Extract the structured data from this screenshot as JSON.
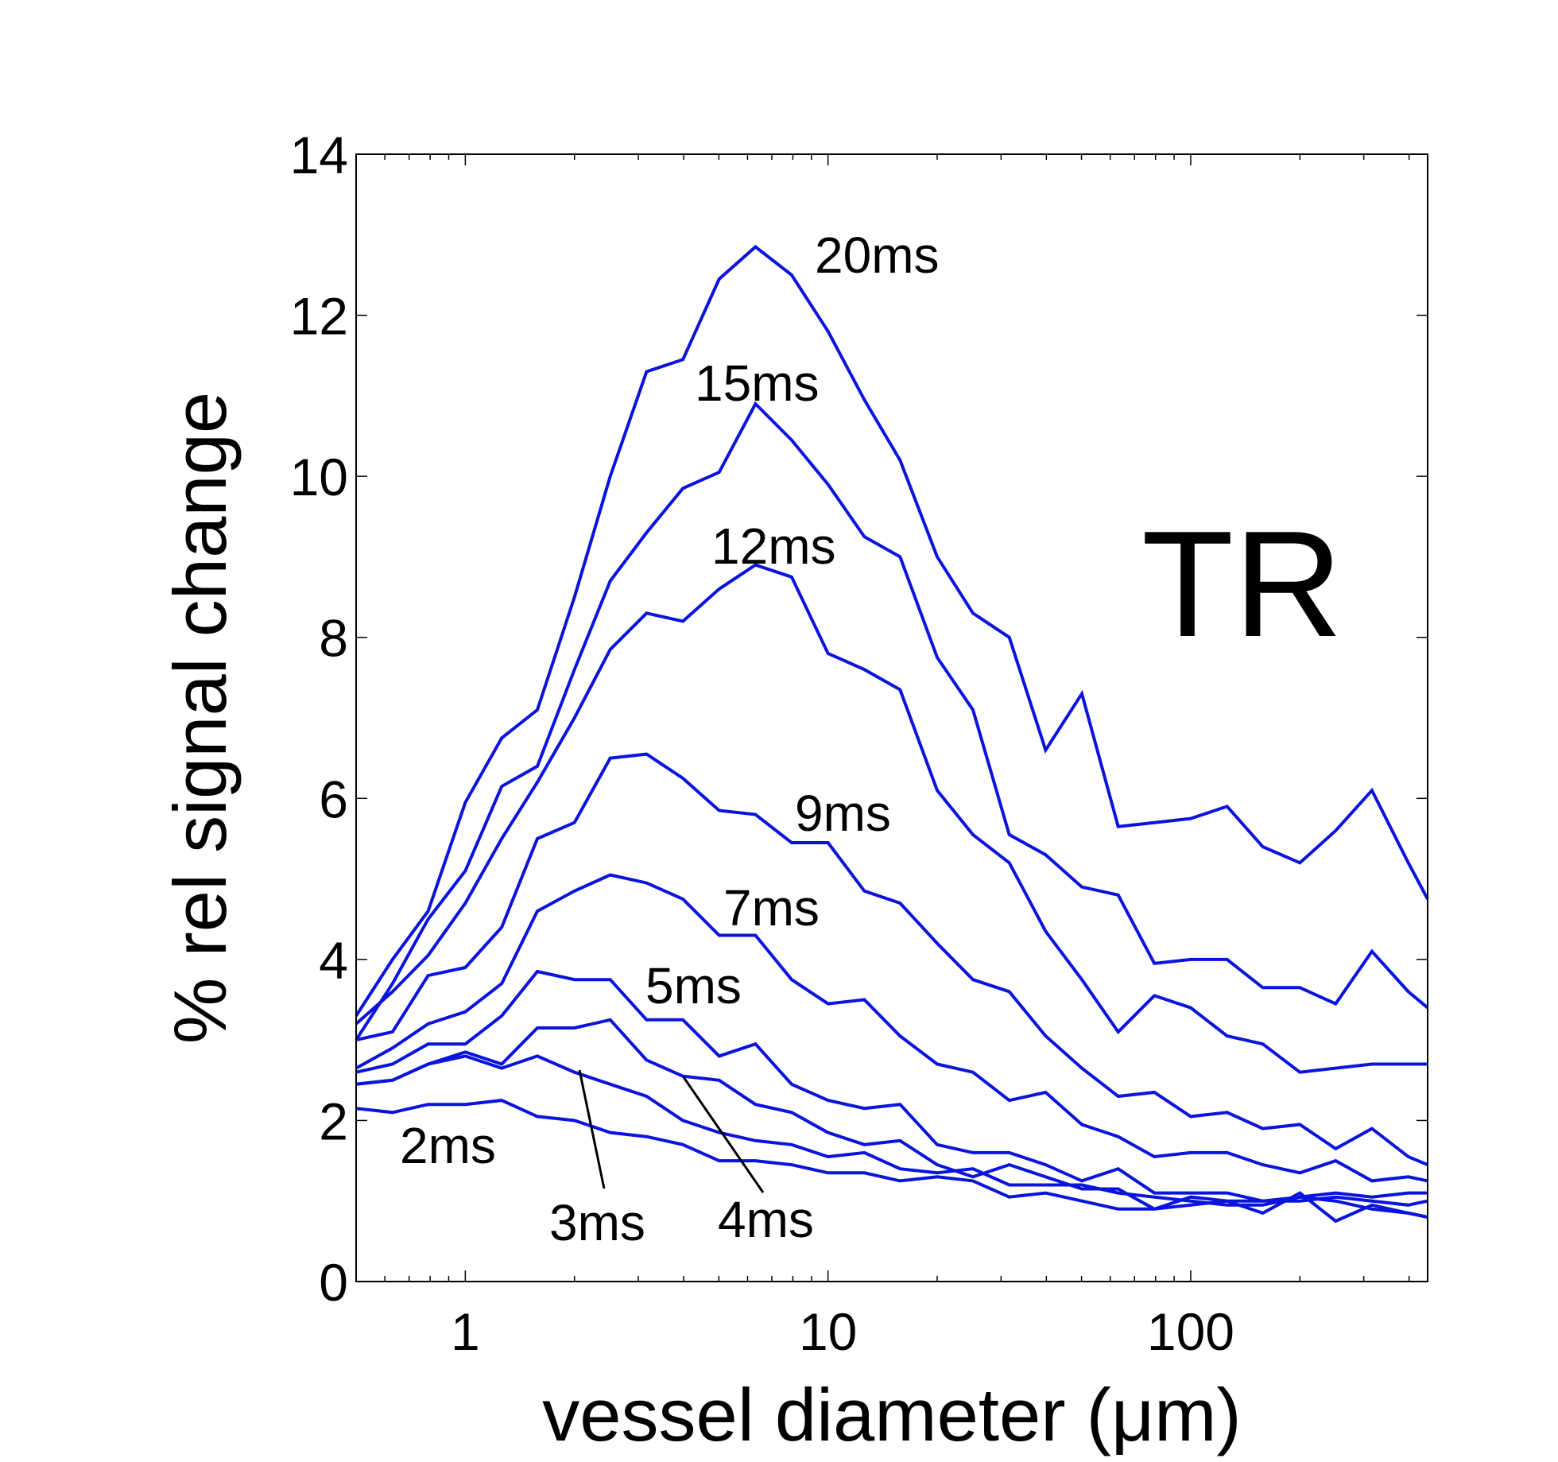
{
  "chart_data": {
    "type": "line",
    "title": "",
    "panel_label": "TR",
    "xlabel": "vessel diameter (μm)",
    "ylabel": "% rel signal change",
    "xscale": "log",
    "xlim": [
      0.5,
      450
    ],
    "ylim": [
      0,
      14
    ],
    "grid": false,
    "line_color": "#0a14dc",
    "x_ticks": [
      {
        "value": 1,
        "label": "1"
      },
      {
        "value": 10,
        "label": "10"
      },
      {
        "value": 100,
        "label": "100"
      }
    ],
    "y_ticks": [
      {
        "value": 0,
        "label": "0"
      },
      {
        "value": 2,
        "label": "2"
      },
      {
        "value": 4,
        "label": "4"
      },
      {
        "value": 6,
        "label": "6"
      },
      {
        "value": 8,
        "label": "8"
      },
      {
        "value": 10,
        "label": "10"
      },
      {
        "value": 12,
        "label": "12"
      },
      {
        "value": 14,
        "label": "14"
      }
    ],
    "x": [
      0.5,
      0.63,
      0.79,
      1.0,
      1.26,
      1.58,
      2.0,
      2.51,
      3.16,
      3.98,
      5.01,
      6.31,
      7.94,
      10.0,
      12.6,
      15.8,
      20.0,
      25.1,
      31.6,
      39.8,
      50.1,
      63.1,
      79.4,
      100,
      126,
      158,
      200,
      251,
      316,
      398,
      450
    ],
    "series": [
      {
        "name": "20ms",
        "label": "20ms",
        "values": [
          3.3,
          4.0,
          4.6,
          5.95,
          6.75,
          7.1,
          8.5,
          10.0,
          11.3,
          11.45,
          12.45,
          12.85,
          12.5,
          11.8,
          10.95,
          10.2,
          9.0,
          8.3,
          8.0,
          6.6,
          7.3,
          5.65,
          5.7,
          5.75,
          5.9,
          5.4,
          5.2,
          5.6,
          6.1,
          5.2,
          4.75
        ]
      },
      {
        "name": "15ms",
        "label": "15ms",
        "values": [
          3.0,
          3.7,
          4.5,
          5.1,
          6.15,
          6.4,
          7.6,
          8.7,
          9.3,
          9.85,
          10.05,
          10.9,
          10.45,
          9.9,
          9.25,
          9.0,
          7.75,
          7.1,
          5.55,
          5.3,
          4.9,
          4.8,
          3.95,
          4.0,
          4.0,
          3.65,
          3.65,
          3.45,
          4.1,
          3.6,
          3.4
        ]
      },
      {
        "name": "12ms",
        "label": "12ms",
        "values": [
          3.2,
          3.6,
          4.05,
          4.7,
          5.5,
          6.2,
          7.0,
          7.85,
          8.3,
          8.2,
          8.6,
          8.9,
          8.75,
          7.8,
          7.6,
          7.35,
          6.1,
          5.55,
          5.2,
          4.35,
          3.75,
          3.1,
          3.55,
          3.4,
          3.05,
          2.95,
          2.6,
          2.65,
          2.7,
          2.7,
          2.7
        ]
      },
      {
        "name": "9ms",
        "label": "9ms",
        "values": [
          3.0,
          3.1,
          3.8,
          3.9,
          4.4,
          5.5,
          5.7,
          6.5,
          6.55,
          6.25,
          5.85,
          5.8,
          5.45,
          5.45,
          4.85,
          4.7,
          4.2,
          3.75,
          3.6,
          3.05,
          2.65,
          2.3,
          2.35,
          2.05,
          2.1,
          1.9,
          1.95,
          1.65,
          1.9,
          1.55,
          1.45
        ]
      },
      {
        "name": "7ms",
        "label": "7ms",
        "values": [
          2.65,
          2.9,
          3.2,
          3.35,
          3.7,
          4.6,
          4.85,
          5.05,
          4.95,
          4.75,
          4.3,
          4.3,
          3.75,
          3.45,
          3.5,
          3.05,
          2.7,
          2.6,
          2.25,
          2.35,
          1.95,
          1.8,
          1.55,
          1.6,
          1.6,
          1.45,
          1.35,
          1.5,
          1.25,
          1.3,
          1.25
        ]
      },
      {
        "name": "5ms",
        "label": "5ms",
        "values": [
          2.6,
          2.7,
          2.95,
          2.95,
          3.3,
          3.85,
          3.75,
          3.75,
          3.25,
          3.25,
          2.8,
          2.95,
          2.45,
          2.25,
          2.15,
          2.2,
          1.7,
          1.6,
          1.6,
          1.45,
          1.25,
          1.4,
          1.1,
          1.1,
          1.1,
          1.0,
          1.05,
          1.1,
          1.05,
          1.1,
          1.1
        ]
      },
      {
        "name": "4ms",
        "label": "4ms",
        "values": [
          2.45,
          2.5,
          2.7,
          2.85,
          2.7,
          3.15,
          3.15,
          3.25,
          2.75,
          2.55,
          2.5,
          2.2,
          2.1,
          1.85,
          1.7,
          1.75,
          1.45,
          1.3,
          1.45,
          1.3,
          1.15,
          1.15,
          0.9,
          1.05,
          1.0,
          0.85,
          1.1,
          0.75,
          0.95,
          0.85,
          0.8
        ]
      },
      {
        "name": "3ms",
        "label": "3ms",
        "values": [
          2.45,
          2.5,
          2.7,
          2.8,
          2.65,
          2.8,
          2.6,
          2.45,
          2.3,
          2.0,
          1.85,
          1.75,
          1.7,
          1.55,
          1.6,
          1.4,
          1.35,
          1.4,
          1.2,
          1.2,
          1.2,
          1.1,
          1.05,
          1.0,
          0.95,
          0.95,
          1.05,
          1.0,
          0.9,
          0.85,
          0.8
        ]
      },
      {
        "name": "2ms",
        "label": "2ms",
        "values": [
          2.15,
          2.1,
          2.2,
          2.2,
          2.25,
          2.05,
          2.0,
          1.85,
          1.8,
          1.7,
          1.5,
          1.5,
          1.45,
          1.35,
          1.35,
          1.25,
          1.3,
          1.25,
          1.05,
          1.1,
          1.0,
          0.9,
          0.9,
          0.95,
          1.0,
          1.0,
          1.0,
          1.05,
          1.0,
          0.95,
          1.0
        ]
      }
    ]
  }
}
